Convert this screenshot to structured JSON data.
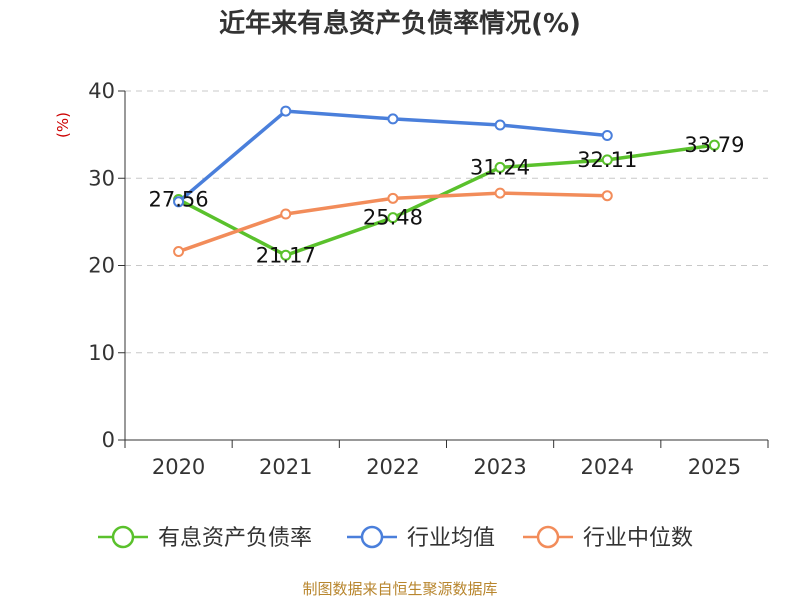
{
  "chart_data": {
    "type": "line",
    "title": "近年来有息资产负债率情况(%)",
    "ylabel": "(%)",
    "categories": [
      "2020",
      "2021",
      "2022",
      "2023",
      "2024",
      "2025"
    ],
    "ylim": [
      0,
      40
    ],
    "yticks": [
      0,
      10,
      20,
      30,
      40
    ],
    "grid": true,
    "legend_position": "bottom",
    "series": [
      {
        "name": "有息资产负债率",
        "color": "#5ac12c",
        "values": [
          27.56,
          21.17,
          25.48,
          31.24,
          32.11,
          33.79
        ],
        "labels": [
          "27.56",
          "21.17",
          "25.48",
          "31.24",
          "32.11",
          "33.79"
        ]
      },
      {
        "name": "行业均值",
        "color": "#4a7fdb",
        "values": [
          27.3,
          37.7,
          36.8,
          36.1,
          34.9,
          null
        ]
      },
      {
        "name": "行业中位数",
        "color": "#f28c5a",
        "values": [
          21.6,
          25.9,
          27.7,
          28.3,
          28.0,
          null
        ]
      }
    ],
    "source": "制图数据来自恒生聚源数据库"
  }
}
